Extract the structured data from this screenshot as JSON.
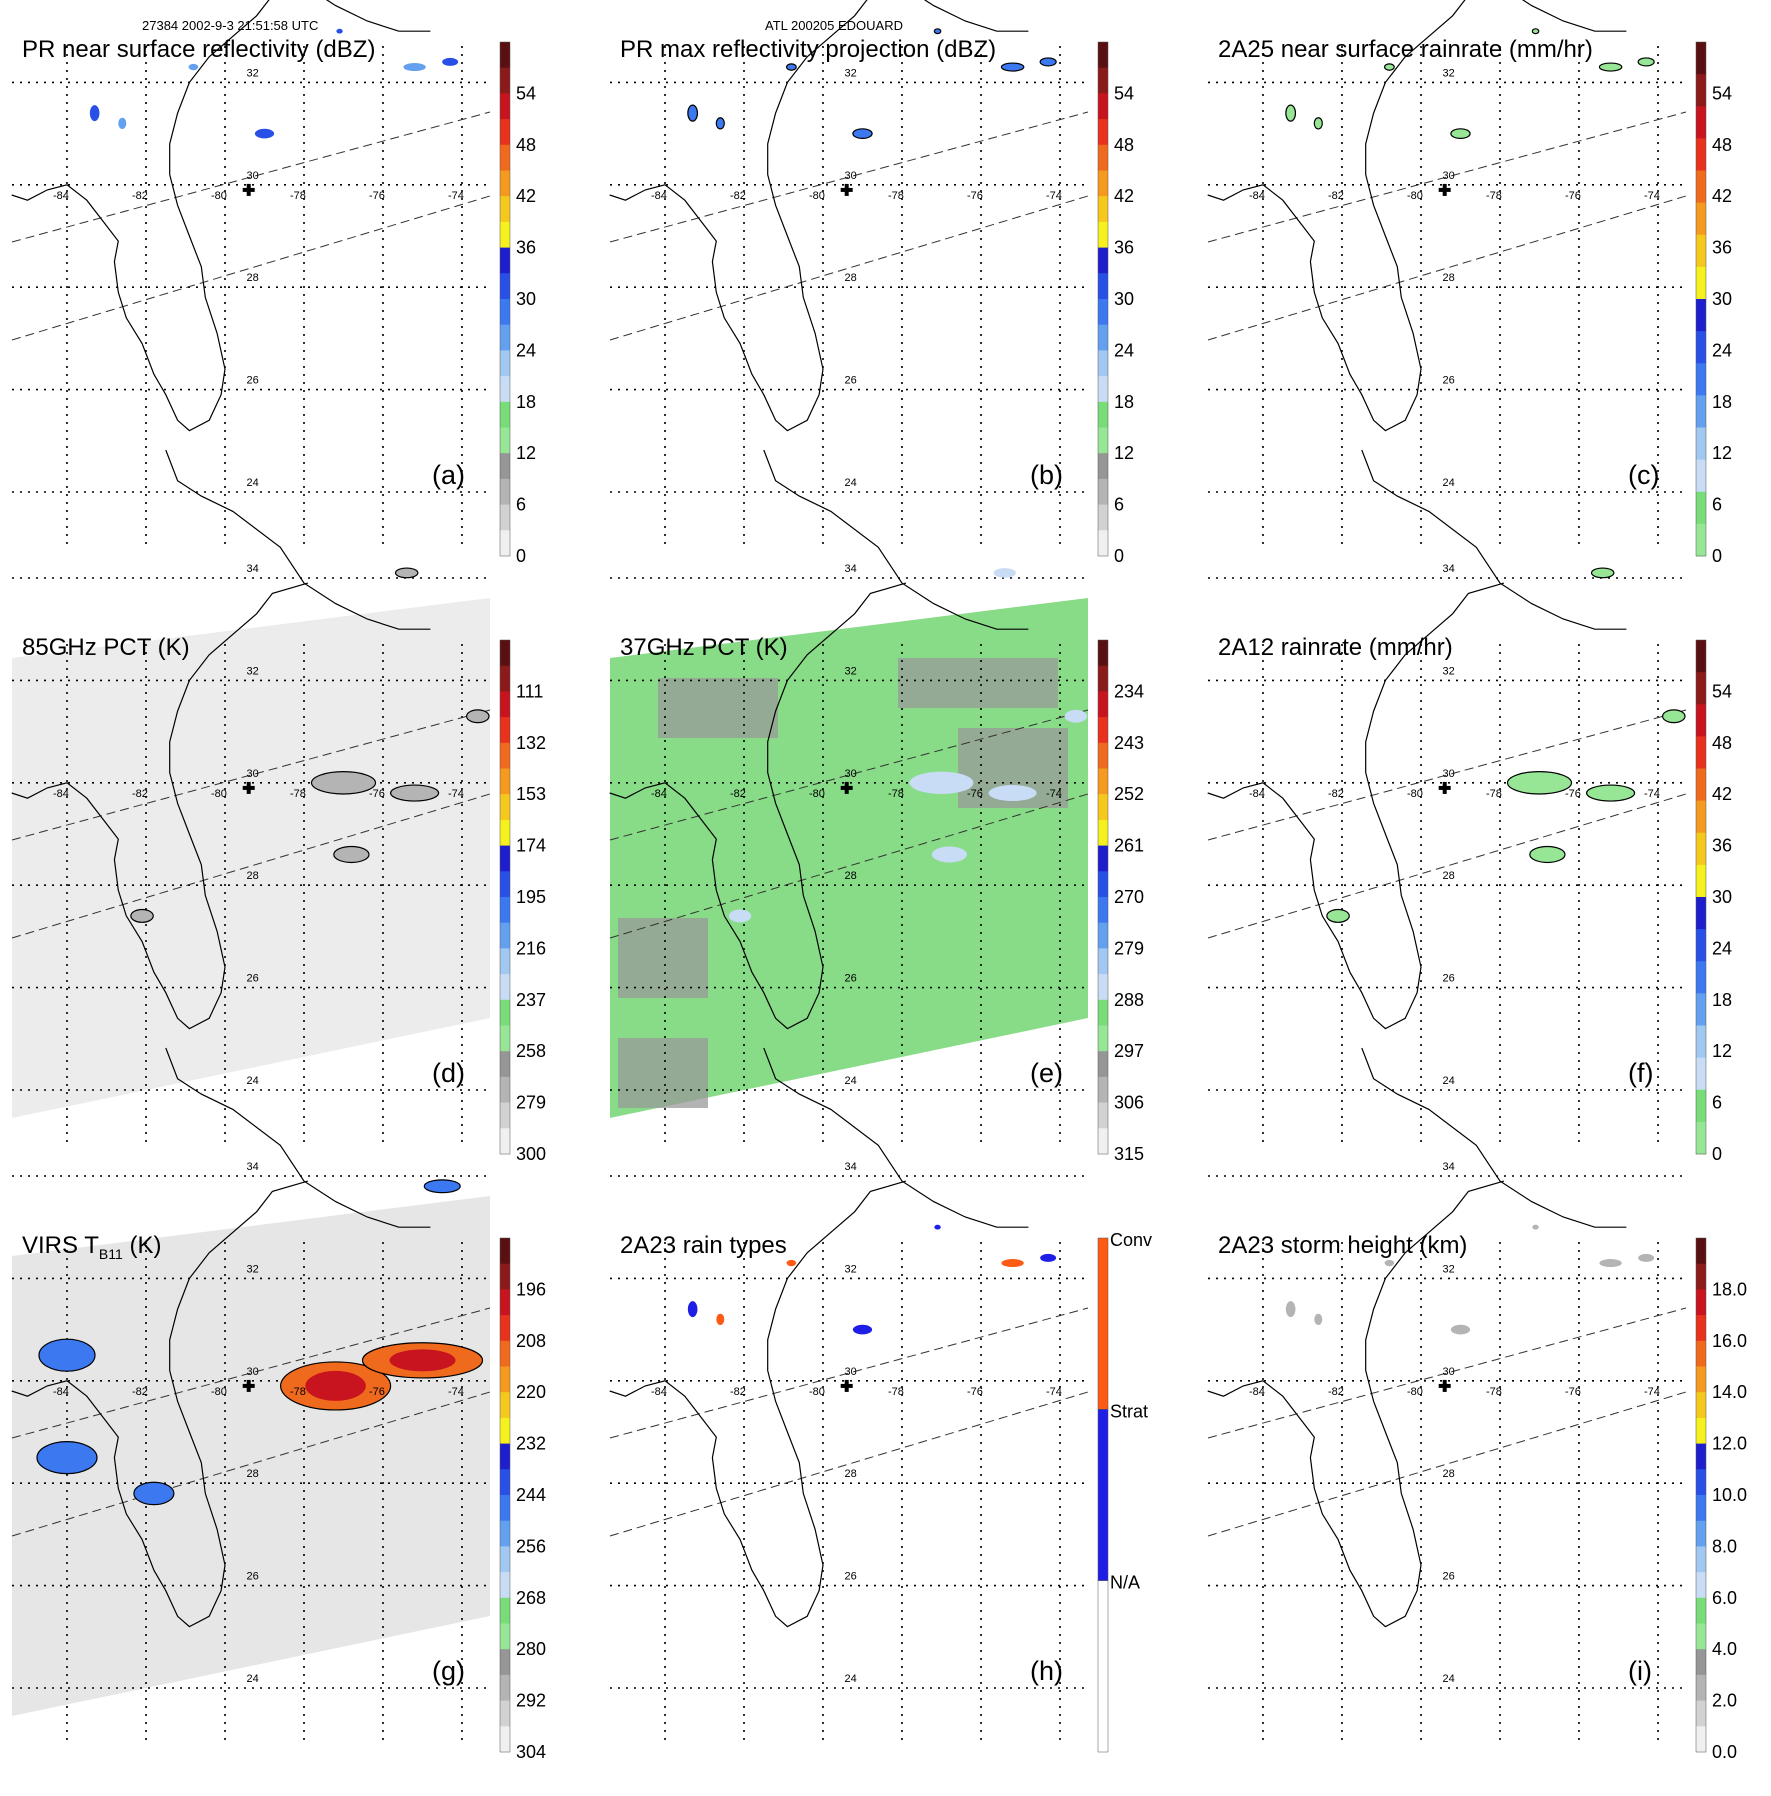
{
  "header": {
    "orbit_time": "27384 2002-9-3 21:51:58 UTC",
    "storm": "ATL 200205 EDOUARD"
  },
  "map": {
    "lon_labels": [
      "-84",
      "-82",
      "-80",
      "-78",
      "-76",
      "-74"
    ],
    "lat_labels": [
      "34",
      "32",
      "30",
      "28",
      "26",
      "24"
    ],
    "storm_center_marker": "plus-icon"
  },
  "panels": [
    {
      "id": "a",
      "title": "PR near surface reflectivity (dBZ)",
      "label": "(a)",
      "colorbar": {
        "ticks": [
          "54",
          "48",
          "42",
          "36",
          "30",
          "24",
          "18",
          "12",
          "6",
          "0"
        ],
        "colors": [
          "#5a1010",
          "#8b1a1a",
          "#c8141e",
          "#e8321e",
          "#f06a1e",
          "#f59a1e",
          "#f5c81e",
          "#f5f01e",
          "#1e1ecc",
          "#2850e6",
          "#3c78f0",
          "#64a0f0",
          "#a0c8f0",
          "#c8dcf5",
          "#78dc78",
          "#96e696",
          "#969696",
          "#b4b4b4",
          "#d2d2d2",
          "#f0f0f0"
        ]
      },
      "swath": "none"
    },
    {
      "id": "b",
      "title": "PR max reflectivity projection (dBZ)",
      "label": "(b)",
      "colorbar": {
        "ticks": [
          "54",
          "48",
          "42",
          "36",
          "30",
          "24",
          "18",
          "12",
          "6",
          "0"
        ],
        "colors": [
          "#5a1010",
          "#8b1a1a",
          "#c8141e",
          "#e8321e",
          "#f06a1e",
          "#f59a1e",
          "#f5c81e",
          "#f5f01e",
          "#1e1ecc",
          "#2850e6",
          "#3c78f0",
          "#64a0f0",
          "#a0c8f0",
          "#c8dcf5",
          "#78dc78",
          "#96e696",
          "#969696",
          "#b4b4b4",
          "#d2d2d2",
          "#f0f0f0"
        ]
      },
      "swath": "none"
    },
    {
      "id": "c",
      "title": "2A25 near surface rainrate (mm/hr)",
      "label": "(c)",
      "colorbar": {
        "ticks": [
          "54",
          "48",
          "42",
          "36",
          "30",
          "24",
          "18",
          "12",
          "6",
          "0"
        ],
        "colors": [
          "#5a1010",
          "#8b1a1a",
          "#c8141e",
          "#e8321e",
          "#f06a1e",
          "#f59a1e",
          "#f5c81e",
          "#f5f01e",
          "#1e1ecc",
          "#2850e6",
          "#3c78f0",
          "#64a0f0",
          "#a0c8f0",
          "#c8dcf5",
          "#78dc78",
          "#96e696"
        ]
      },
      "swath": "none"
    },
    {
      "id": "d",
      "title": "85GHz PCT (K)",
      "label": "(d)",
      "colorbar": {
        "ticks": [
          "111",
          "132",
          "153",
          "174",
          "195",
          "216",
          "237",
          "258",
          "279",
          "300"
        ],
        "colors": [
          "#5a1010",
          "#8b1a1a",
          "#c8141e",
          "#e8321e",
          "#f06a1e",
          "#f59a1e",
          "#f5c81e",
          "#f5f01e",
          "#1e1ecc",
          "#2850e6",
          "#3c78f0",
          "#64a0f0",
          "#a0c8f0",
          "#c8dcf5",
          "#78dc78",
          "#96e696",
          "#969696",
          "#b4b4b4",
          "#d2d2d2",
          "#f0f0f0"
        ]
      },
      "swath": "#ececec"
    },
    {
      "id": "e",
      "title": "37GHz PCT (K)",
      "label": "(e)",
      "colorbar": {
        "ticks": [
          "234",
          "243",
          "252",
          "261",
          "270",
          "279",
          "288",
          "297",
          "306",
          "315"
        ],
        "colors": [
          "#5a1010",
          "#8b1a1a",
          "#c8141e",
          "#e8321e",
          "#f06a1e",
          "#f59a1e",
          "#f5c81e",
          "#f5f01e",
          "#1e1ecc",
          "#2850e6",
          "#3c78f0",
          "#64a0f0",
          "#a0c8f0",
          "#c8dcf5",
          "#78dc78",
          "#96e696",
          "#969696",
          "#b4b4b4",
          "#d2d2d2",
          "#f0f0f0"
        ]
      },
      "swath": "#88dc88"
    },
    {
      "id": "f",
      "title": "2A12 rainrate (mm/hr)",
      "label": "(f)",
      "colorbar": {
        "ticks": [
          "54",
          "48",
          "42",
          "36",
          "30",
          "24",
          "18",
          "12",
          "6",
          "0"
        ],
        "colors": [
          "#5a1010",
          "#8b1a1a",
          "#c8141e",
          "#e8321e",
          "#f06a1e",
          "#f59a1e",
          "#f5c81e",
          "#f5f01e",
          "#1e1ecc",
          "#2850e6",
          "#3c78f0",
          "#64a0f0",
          "#a0c8f0",
          "#c8dcf5",
          "#78dc78",
          "#96e696"
        ]
      },
      "swath": "none"
    },
    {
      "id": "g",
      "title": "VIRS T",
      "title_sub": "B11",
      "title_suffix": " (K)",
      "label": "(g)",
      "colorbar": {
        "ticks": [
          "196",
          "208",
          "220",
          "232",
          "244",
          "256",
          "268",
          "280",
          "292",
          "304"
        ],
        "colors": [
          "#5a1010",
          "#8b1a1a",
          "#c8141e",
          "#e8321e",
          "#f06a1e",
          "#f59a1e",
          "#f5c81e",
          "#f5f01e",
          "#1e1ecc",
          "#2850e6",
          "#3c78f0",
          "#64a0f0",
          "#a0c8f0",
          "#c8dcf5",
          "#78dc78",
          "#96e696",
          "#969696",
          "#b4b4b4",
          "#d2d2d2",
          "#f0f0f0"
        ]
      },
      "swath": "#e6e6e6"
    },
    {
      "id": "h",
      "title": "2A23 rain types",
      "label": "(h)",
      "colorbar": {
        "ticks": [
          "Conv",
          "Strat",
          "N/A"
        ],
        "categorical": true,
        "colors": [
          "#ff5a14",
          "#1e1ee6",
          "#ffffff"
        ]
      },
      "swath": "none"
    },
    {
      "id": "i",
      "title": "2A23 storm height (km)",
      "label": "(i)",
      "colorbar": {
        "ticks": [
          "18.0",
          "16.0",
          "14.0",
          "12.0",
          "10.0",
          "8.0",
          "6.0",
          "4.0",
          "2.0",
          "0.0"
        ],
        "colors": [
          "#5a1010",
          "#8b1a1a",
          "#c8141e",
          "#e8321e",
          "#f06a1e",
          "#f59a1e",
          "#f5c81e",
          "#f5f01e",
          "#1e1ecc",
          "#2850e6",
          "#3c78f0",
          "#64a0f0",
          "#a0c8f0",
          "#c8dcf5",
          "#78dc78",
          "#96e696",
          "#969696",
          "#b4b4b4",
          "#d2d2d2",
          "#f0f0f0"
        ]
      },
      "swath": "none"
    }
  ]
}
